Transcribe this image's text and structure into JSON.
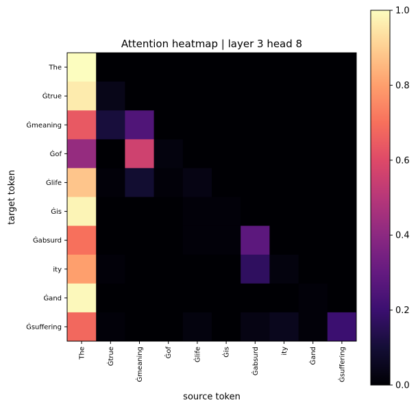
{
  "chart_data": {
    "type": "heatmap",
    "title": "Attention heatmap | layer 3 head 8",
    "xlabel": "source token",
    "ylabel": "target token",
    "x_tokens": [
      "The",
      "Ġtrue",
      "Ġmeaning",
      "Ġof",
      "Ġlife",
      "Ġis",
      "Ġabsurd",
      "ity",
      "Ġand",
      "Ġsuffering"
    ],
    "y_tokens": [
      "The",
      "Ġtrue",
      "Ġmeaning",
      "Ġof",
      "Ġlife",
      "Ġis",
      "Ġabsurd",
      "ity",
      "Ġand",
      "Ġsuffering"
    ],
    "values": [
      [
        1.0,
        0.0,
        0.0,
        0.0,
        0.0,
        0.0,
        0.0,
        0.0,
        0.0,
        0.0
      ],
      [
        0.96,
        0.04,
        0.0,
        0.0,
        0.0,
        0.0,
        0.0,
        0.0,
        0.0,
        0.0
      ],
      [
        0.64,
        0.11,
        0.25,
        0.0,
        0.0,
        0.0,
        0.0,
        0.0,
        0.0,
        0.0
      ],
      [
        0.42,
        0.0,
        0.56,
        0.02,
        0.0,
        0.0,
        0.0,
        0.0,
        0.0,
        0.0
      ],
      [
        0.88,
        0.01,
        0.09,
        0.01,
        0.03,
        0.0,
        0.0,
        0.0,
        0.0,
        0.0
      ],
      [
        0.98,
        0.0,
        0.0,
        0.0,
        0.01,
        0.01,
        0.0,
        0.0,
        0.0,
        0.0
      ],
      [
        0.7,
        0.0,
        0.0,
        0.0,
        0.01,
        0.01,
        0.28,
        0.0,
        0.0,
        0.0
      ],
      [
        0.8,
        0.01,
        0.0,
        0.0,
        0.0,
        0.0,
        0.17,
        0.02,
        0.0,
        0.0
      ],
      [
        0.99,
        0.0,
        0.0,
        0.0,
        0.0,
        0.0,
        0.0,
        0.0,
        0.01,
        0.0
      ],
      [
        0.68,
        0.01,
        0.0,
        0.0,
        0.02,
        0.0,
        0.03,
        0.05,
        0.01,
        0.2
      ]
    ],
    "colormap": "magma",
    "colorbar": {
      "range": [
        0.0,
        1.0
      ],
      "ticks": [
        "0.0",
        "0.2",
        "0.4",
        "0.6",
        "0.8",
        "1.0"
      ]
    }
  }
}
